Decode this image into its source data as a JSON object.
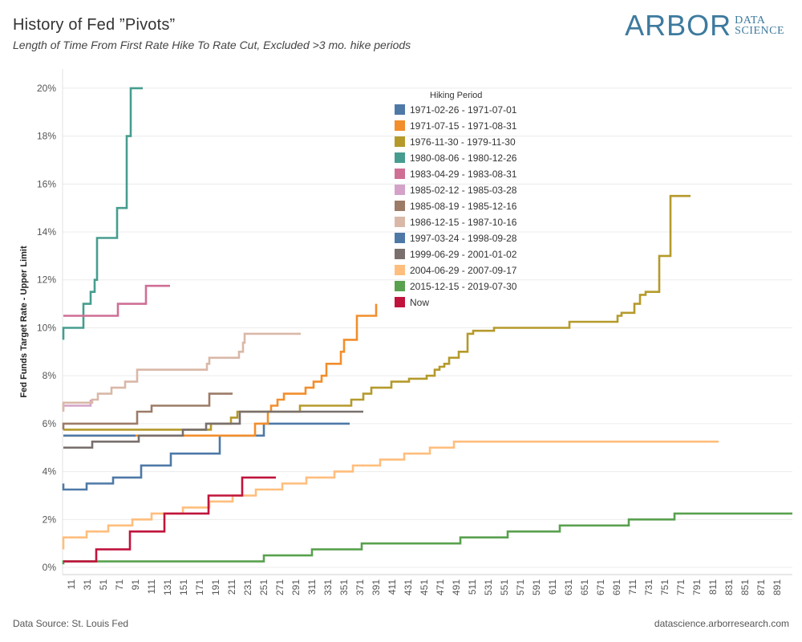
{
  "header": {
    "title": "History of Fed ”Pivots”",
    "subtitle": "Length of Time From First Rate Hike To Rate Cut, Excluded >3 mo. hike periods"
  },
  "logo": {
    "main": "ARBOR",
    "sub_top": "DATA",
    "sub_bottom": "SCIENCE",
    "color": "#3d7a9e"
  },
  "footer": {
    "source": "Data Source: St. Louis Fed",
    "website": "datascience.arborresearch.com"
  },
  "chart_data": {
    "type": "line",
    "title": "History of Fed ”Pivots”",
    "subtitle": "Length of Time From First Rate Hike To Rate Cut, Excluded >3 mo. hike periods",
    "xlabel": "",
    "ylabel": "Fed Funds Target Rate - Upper Limit",
    "xlim": [
      0,
      910
    ],
    "ylim": [
      -0.3,
      20.8
    ],
    "y_ticks": [
      0,
      2,
      4,
      6,
      8,
      10,
      12,
      14,
      16,
      18,
      20
    ],
    "y_tick_labels": [
      "0%",
      "2%",
      "4%",
      "6%",
      "8%",
      "10%",
      "12%",
      "14%",
      "16%",
      "18%",
      "20%"
    ],
    "x_ticks": [
      11,
      31,
      51,
      71,
      91,
      111,
      131,
      151,
      171,
      191,
      211,
      231,
      251,
      271,
      291,
      311,
      331,
      351,
      371,
      391,
      411,
      431,
      451,
      471,
      491,
      511,
      531,
      551,
      571,
      591,
      611,
      631,
      651,
      671,
      691,
      711,
      731,
      751,
      771,
      791,
      811,
      831,
      851,
      871,
      891
    ],
    "x_tick_labels": [
      "11",
      "31",
      "51",
      "71",
      "91",
      "111",
      "131",
      "151",
      "171",
      "191",
      "211",
      "231",
      "251",
      "271",
      "291",
      "311",
      "331",
      "351",
      "371",
      "391",
      "411",
      "431",
      "451",
      "471",
      "491",
      "511",
      "531",
      "551",
      "571",
      "591",
      "611",
      "631",
      "651",
      "671",
      "691",
      "711",
      "731",
      "751",
      "771",
      "791",
      "811",
      "831",
      "851",
      "871",
      "891"
    ],
    "step": true,
    "grid": true,
    "legend_title": "Hiking Period",
    "legend_position": "top-center",
    "series": [
      {
        "name": "1971-02-26 - 1971-07-01",
        "color": "#4e79a7",
        "points": [
          [
            1,
            3.5
          ],
          [
            1,
            3.25
          ],
          [
            30,
            3.25
          ],
          [
            30,
            3.5
          ],
          [
            63,
            3.5
          ],
          [
            63,
            3.75
          ],
          [
            98,
            3.75
          ],
          [
            98,
            4.25
          ],
          [
            135,
            4.25
          ],
          [
            135,
            4.75
          ],
          [
            196,
            4.75
          ],
          [
            196,
            5.5
          ],
          [
            251,
            5.5
          ],
          [
            251,
            6.0
          ],
          [
            358,
            6.0
          ]
        ]
      },
      {
        "name": "1971-07-15 - 1971-08-31",
        "color": "#f28e2b",
        "points": [
          [
            1,
            5.5
          ],
          [
            240,
            5.5
          ],
          [
            240,
            6.0
          ],
          [
            256,
            6.0
          ],
          [
            256,
            6.5
          ],
          [
            260,
            6.5
          ],
          [
            260,
            6.75
          ],
          [
            268,
            6.75
          ],
          [
            268,
            7.0
          ],
          [
            276,
            7.0
          ],
          [
            276,
            7.25
          ],
          [
            303,
            7.25
          ],
          [
            303,
            7.5
          ],
          [
            313,
            7.5
          ],
          [
            313,
            7.75
          ],
          [
            323,
            7.75
          ],
          [
            323,
            8.0
          ],
          [
            329,
            8.0
          ],
          [
            329,
            8.5
          ],
          [
            347,
            8.5
          ],
          [
            347,
            9.0
          ],
          [
            351,
            9.0
          ],
          [
            351,
            9.5
          ],
          [
            367,
            9.5
          ],
          [
            367,
            10.5
          ],
          [
            391,
            10.5
          ],
          [
            391,
            11.0
          ]
        ]
      },
      {
        "name": "1976-11-30 - 1979-11-30",
        "color": "#b59a2b",
        "points": [
          [
            1,
            5.75
          ],
          [
            185,
            5.75
          ],
          [
            185,
            6.0
          ],
          [
            210,
            6.0
          ],
          [
            210,
            6.25
          ],
          [
            218,
            6.25
          ],
          [
            218,
            6.5
          ],
          [
            296,
            6.5
          ],
          [
            296,
            6.75
          ],
          [
            360,
            6.75
          ],
          [
            360,
            7.0
          ],
          [
            375,
            7.0
          ],
          [
            375,
            7.25
          ],
          [
            385,
            7.25
          ],
          [
            385,
            7.5
          ],
          [
            410,
            7.5
          ],
          [
            410,
            7.75
          ],
          [
            432,
            7.75
          ],
          [
            432,
            7.875
          ],
          [
            454,
            7.875
          ],
          [
            454,
            8.0
          ],
          [
            464,
            8.0
          ],
          [
            464,
            8.25
          ],
          [
            470,
            8.25
          ],
          [
            470,
            8.375
          ],
          [
            476,
            8.375
          ],
          [
            476,
            8.5
          ],
          [
            482,
            8.5
          ],
          [
            482,
            8.75
          ],
          [
            494,
            8.75
          ],
          [
            494,
            9.0
          ],
          [
            505,
            9.0
          ],
          [
            505,
            9.75
          ],
          [
            512,
            9.75
          ],
          [
            512,
            9.875
          ],
          [
            538,
            9.875
          ],
          [
            538,
            10.0
          ],
          [
            632,
            10.0
          ],
          [
            632,
            10.25
          ],
          [
            692,
            10.25
          ],
          [
            692,
            10.5
          ],
          [
            697,
            10.5
          ],
          [
            697,
            10.625
          ],
          [
            713,
            10.625
          ],
          [
            713,
            11.0
          ],
          [
            720,
            11.0
          ],
          [
            720,
            11.375
          ],
          [
            727,
            11.375
          ],
          [
            727,
            11.5
          ],
          [
            744,
            11.5
          ],
          [
            744,
            13.0
          ],
          [
            758,
            13.0
          ],
          [
            758,
            15.5
          ],
          [
            783,
            15.5
          ]
        ]
      },
      {
        "name": "1980-08-06 - 1980-12-26",
        "color": "#469d8f",
        "points": [
          [
            1,
            9.5
          ],
          [
            1,
            10.0
          ],
          [
            26,
            10.0
          ],
          [
            26,
            11.0
          ],
          [
            35,
            11.0
          ],
          [
            35,
            11.5
          ],
          [
            40,
            11.5
          ],
          [
            40,
            12.0
          ],
          [
            43,
            12.0
          ],
          [
            43,
            13.75
          ],
          [
            68,
            13.75
          ],
          [
            68,
            15.0
          ],
          [
            80,
            15.0
          ],
          [
            80,
            18.0
          ],
          [
            85,
            18.0
          ],
          [
            85,
            20.0
          ],
          [
            100,
            20.0
          ]
        ]
      },
      {
        "name": "1983-04-29 - 1983-08-31",
        "color": "#cf6f95",
        "points": [
          [
            1,
            10.5
          ],
          [
            69,
            10.5
          ],
          [
            69,
            11.0
          ],
          [
            104,
            11.0
          ],
          [
            104,
            11.75
          ],
          [
            134,
            11.75
          ]
        ]
      },
      {
        "name": "1985-02-12 - 1985-03-28",
        "color": "#d4a2c9",
        "points": [
          [
            1,
            6.6
          ],
          [
            1,
            6.75
          ],
          [
            35,
            6.75
          ],
          [
            35,
            7.0
          ]
        ]
      },
      {
        "name": "1985-08-19 - 1985-12-16",
        "color": "#9c7b67",
        "points": [
          [
            1,
            5.75
          ],
          [
            1,
            6.0
          ],
          [
            93,
            6.0
          ],
          [
            93,
            6.5
          ],
          [
            111,
            6.5
          ],
          [
            111,
            6.75
          ],
          [
            183,
            6.75
          ],
          [
            183,
            7.25
          ],
          [
            212,
            7.25
          ]
        ]
      },
      {
        "name": "1986-12-15 - 1987-10-16",
        "color": "#d9b8a8",
        "points": [
          [
            1,
            6.5
          ],
          [
            1,
            6.875
          ],
          [
            37,
            6.875
          ],
          [
            37,
            7.0
          ],
          [
            44,
            7.0
          ],
          [
            44,
            7.25
          ],
          [
            61,
            7.25
          ],
          [
            61,
            7.5
          ],
          [
            78,
            7.5
          ],
          [
            78,
            7.75
          ],
          [
            93,
            7.75
          ],
          [
            93,
            8.25
          ],
          [
            180,
            8.25
          ],
          [
            180,
            8.5
          ],
          [
            183,
            8.5
          ],
          [
            183,
            8.75
          ],
          [
            220,
            8.75
          ],
          [
            220,
            9.0
          ],
          [
            225,
            9.0
          ],
          [
            225,
            9.375
          ],
          [
            227,
            9.375
          ],
          [
            227,
            9.75
          ],
          [
            297,
            9.75
          ]
        ]
      },
      {
        "name": "1997-03-24 - 1998-09-28",
        "color": "#4e79a7",
        "points": [
          [
            1,
            5.5
          ],
          [
            91,
            5.5
          ]
        ]
      },
      {
        "name": "1999-06-29 - 2001-01-02",
        "color": "#79706e",
        "points": [
          [
            1,
            5.0
          ],
          [
            37,
            5.0
          ],
          [
            37,
            5.25
          ],
          [
            95,
            5.25
          ],
          [
            95,
            5.5
          ],
          [
            150,
            5.5
          ],
          [
            150,
            5.75
          ],
          [
            179,
            5.75
          ],
          [
            179,
            6.0
          ],
          [
            221,
            6.0
          ],
          [
            221,
            6.5
          ],
          [
            375,
            6.5
          ]
        ]
      },
      {
        "name": "2004-06-29 - 2007-09-17",
        "color": "#ffbe7d",
        "points": [
          [
            1,
            0.75
          ],
          [
            1,
            1.25
          ],
          [
            30,
            1.25
          ],
          [
            30,
            1.5
          ],
          [
            57,
            1.5
          ],
          [
            57,
            1.75
          ],
          [
            87,
            1.75
          ],
          [
            87,
            2.0
          ],
          [
            111,
            2.0
          ],
          [
            111,
            2.25
          ],
          [
            150,
            2.25
          ],
          [
            150,
            2.5
          ],
          [
            183,
            2.5
          ],
          [
            183,
            2.75
          ],
          [
            212,
            2.75
          ],
          [
            212,
            3.0
          ],
          [
            241,
            3.0
          ],
          [
            241,
            3.25
          ],
          [
            274,
            3.25
          ],
          [
            274,
            3.5
          ],
          [
            304,
            3.5
          ],
          [
            304,
            3.75
          ],
          [
            339,
            3.75
          ],
          [
            339,
            4.0
          ],
          [
            362,
            4.0
          ],
          [
            362,
            4.25
          ],
          [
            396,
            4.25
          ],
          [
            396,
            4.5
          ],
          [
            426,
            4.5
          ],
          [
            426,
            4.75
          ],
          [
            458,
            4.75
          ],
          [
            458,
            5.0
          ],
          [
            488,
            5.0
          ],
          [
            488,
            5.25
          ],
          [
            818,
            5.25
          ]
        ]
      },
      {
        "name": "2015-12-15 - 2019-07-30",
        "color": "#59a14f",
        "points": [
          [
            1,
            0.125
          ],
          [
            1,
            0.25
          ],
          [
            251,
            0.25
          ],
          [
            251,
            0.5
          ],
          [
            311,
            0.5
          ],
          [
            311,
            0.75
          ],
          [
            373,
            0.75
          ],
          [
            373,
            1.0
          ],
          [
            496,
            1.0
          ],
          [
            496,
            1.25
          ],
          [
            555,
            1.25
          ],
          [
            555,
            1.5
          ],
          [
            620,
            1.5
          ],
          [
            620,
            1.75
          ],
          [
            706,
            1.75
          ],
          [
            706,
            2.0
          ],
          [
            763,
            2.0
          ],
          [
            763,
            2.25
          ],
          [
            910,
            2.25
          ]
        ]
      },
      {
        "name": "Now",
        "color": "#c0143c",
        "points": [
          [
            1,
            0.25
          ],
          [
            42,
            0.25
          ],
          [
            42,
            0.75
          ],
          [
            84,
            0.75
          ],
          [
            84,
            1.5
          ],
          [
            127,
            1.5
          ],
          [
            127,
            2.25
          ],
          [
            182,
            2.25
          ],
          [
            182,
            3.0
          ],
          [
            224,
            3.0
          ],
          [
            224,
            3.75
          ],
          [
            266,
            3.75
          ]
        ]
      }
    ]
  }
}
